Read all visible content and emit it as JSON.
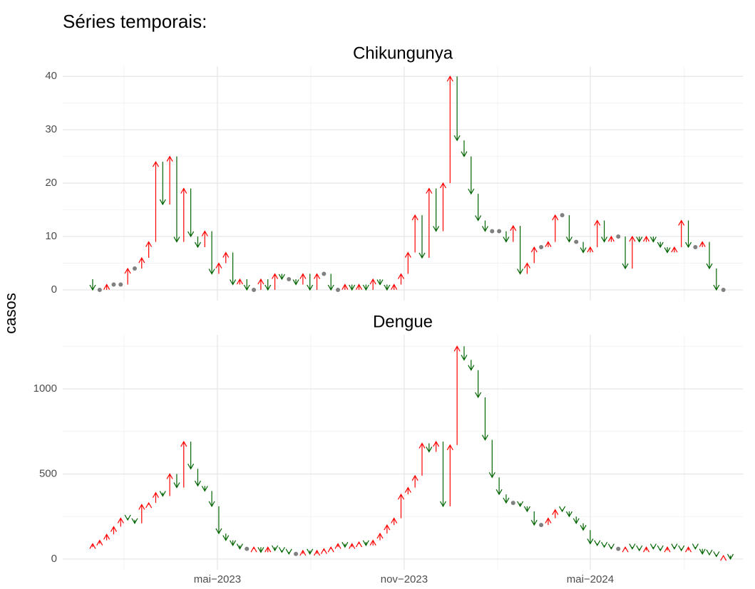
{
  "title": "Séries temporais:",
  "y_label": "casos",
  "chart_data": [
    {
      "type": "arrow",
      "title": "Chikungunya",
      "up_color": "#ff0000",
      "down_color": "#006400",
      "same_color": "#808080",
      "start_value": 2,
      "x": [
        0,
        1,
        2,
        3,
        4,
        5,
        6,
        7,
        8,
        9,
        10,
        11,
        12,
        13,
        14,
        15,
        16,
        17,
        18,
        19,
        20,
        21,
        22,
        23,
        24,
        25,
        26,
        27,
        28,
        29,
        30,
        31,
        32,
        33,
        34,
        35,
        36,
        37,
        38,
        39,
        40,
        41,
        42,
        43,
        44,
        45,
        46,
        47,
        48,
        49,
        50,
        51,
        52,
        53,
        54,
        55,
        56,
        57,
        58,
        59,
        60,
        61,
        62,
        63,
        64,
        65,
        66,
        67,
        68,
        69,
        70,
        71,
        72,
        73,
        74,
        75,
        76,
        77,
        78,
        79,
        80,
        81,
        82,
        83,
        84,
        85,
        86,
        87,
        88,
        89,
        90
      ],
      "values": [
        0,
        0,
        1,
        1,
        1,
        4,
        4,
        6,
        9,
        24,
        16,
        25,
        9,
        19,
        10,
        8,
        11,
        3,
        5,
        7,
        1,
        2,
        0,
        0,
        2,
        0,
        3,
        2,
        2,
        1,
        3,
        0,
        3,
        3,
        0,
        0,
        1,
        0,
        1,
        0,
        2,
        1,
        0,
        1,
        3,
        7,
        14,
        6,
        19,
        11,
        20,
        40,
        28,
        25,
        18,
        13,
        11,
        11,
        11,
        9,
        12,
        3,
        5,
        8,
        8,
        9,
        14,
        14,
        9,
        9,
        7,
        8,
        13,
        9,
        10,
        10,
        4,
        10,
        9,
        10,
        9,
        8,
        7,
        8,
        13,
        8,
        8,
        9,
        4,
        0,
        0
      ],
      "xlim": [
        -4.27,
        92.78
      ],
      "xticks": [
        17.8,
        44.45,
        71.0
      ],
      "ylim": [
        -2,
        41.9
      ],
      "yticks": [
        0,
        10,
        20,
        30,
        40
      ],
      "grid": true
    },
    {
      "type": "arrow",
      "title": "Dengue",
      "up_color": "#ff0000",
      "down_color": "#006400",
      "same_color": "#808080",
      "start_value": 70,
      "x": [
        0,
        1,
        2,
        3,
        4,
        5,
        6,
        7,
        8,
        9,
        10,
        11,
        12,
        13,
        14,
        15,
        16,
        17,
        18,
        19,
        20,
        21,
        22,
        23,
        24,
        25,
        26,
        27,
        28,
        29,
        30,
        31,
        32,
        33,
        34,
        35,
        36,
        37,
        38,
        39,
        40,
        41,
        42,
        43,
        44,
        45,
        46,
        47,
        48,
        49,
        50,
        51,
        52,
        53,
        54,
        55,
        56,
        57,
        58,
        59,
        60,
        61,
        62,
        63,
        64,
        65,
        66,
        67,
        68,
        69,
        70,
        71,
        72,
        73,
        74,
        75,
        76,
        77,
        78,
        79,
        80,
        81,
        82,
        83,
        84,
        85,
        86,
        87,
        88,
        89,
        90,
        91
      ],
      "values": [
        90,
        110,
        145,
        190,
        240,
        230,
        210,
        320,
        330,
        390,
        370,
        500,
        420,
        690,
        530,
        430,
        400,
        310,
        150,
        110,
        80,
        60,
        60,
        70,
        40,
        70,
        50,
        40,
        30,
        30,
        50,
        30,
        50,
        60,
        70,
        90,
        70,
        90,
        100,
        80,
        110,
        150,
        200,
        240,
        380,
        420,
        490,
        680,
        630,
        690,
        310,
        670,
        1250,
        1170,
        1110,
        950,
        700,
        480,
        380,
        330,
        330,
        310,
        280,
        200,
        200,
        240,
        290,
        280,
        250,
        210,
        170,
        90,
        80,
        70,
        60,
        60,
        70,
        60,
        50,
        70,
        60,
        50,
        70,
        60,
        50,
        70,
        60,
        30,
        25,
        15,
        20,
        0
      ],
      "xlim": [
        -4.27,
        92.78
      ],
      "xticks": [
        {
          "value": 17.8,
          "label": "mai−2023"
        },
        {
          "value": 44.45,
          "label": "nov−2023"
        },
        {
          "value": 71.0,
          "label": "mai−2024"
        }
      ],
      "ylim": [
        -63,
        1318
      ],
      "yticks": [
        0,
        500,
        1000
      ],
      "grid": true
    }
  ]
}
